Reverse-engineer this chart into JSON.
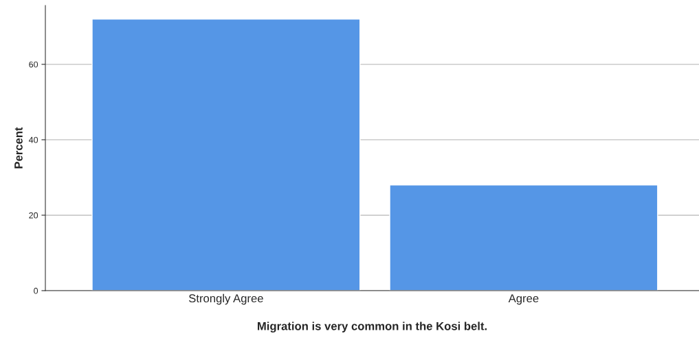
{
  "chart_data": {
    "type": "bar",
    "xlabel": "Migration is very common in the Kosi belt.",
    "ylabel": "Percent",
    "categories": [
      "Strongly Agree",
      "Agree"
    ],
    "values": [
      72,
      28
    ],
    "color": "#5596e6",
    "ylim": [
      0,
      75.6
    ],
    "yticks": [
      0,
      20,
      40,
      60
    ],
    "grid": "y"
  }
}
